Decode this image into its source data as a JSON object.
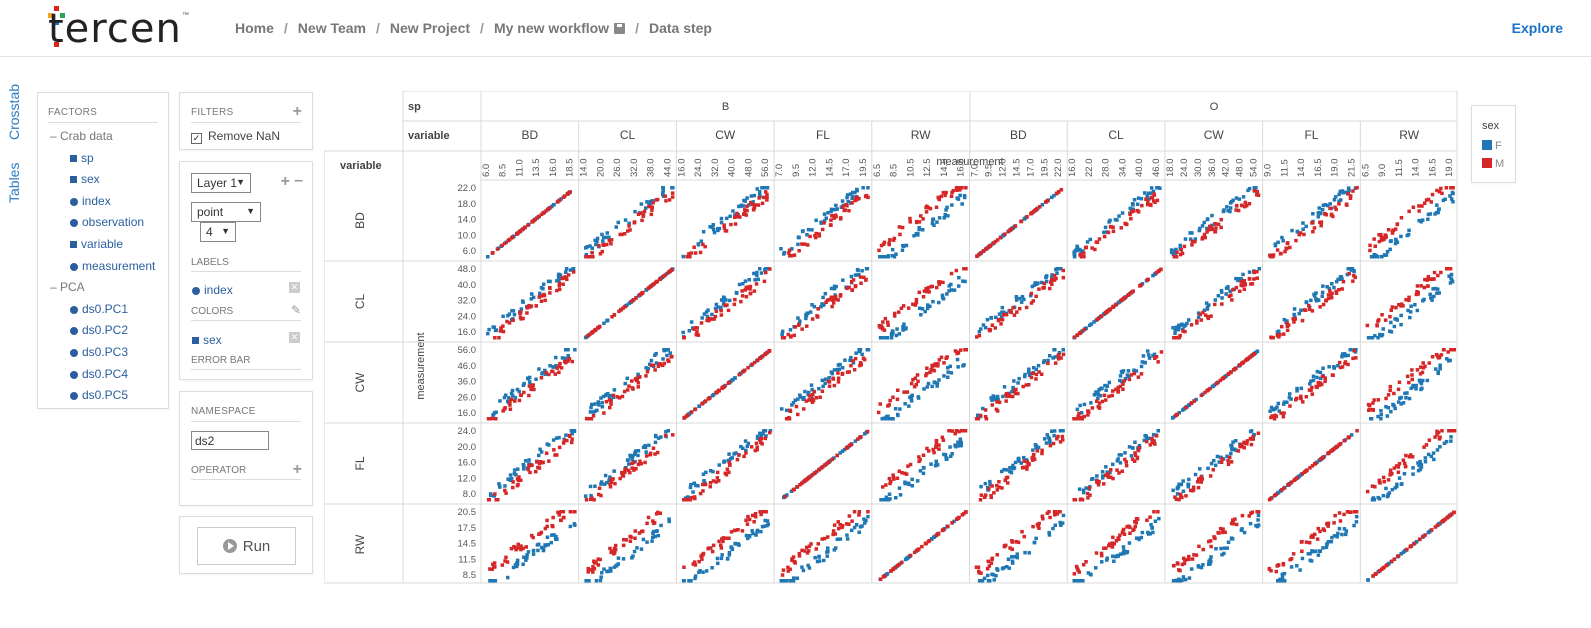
{
  "header": {
    "logo_text": "tercen",
    "breadcrumbs": [
      "Home",
      "New Team",
      "New Project",
      "My new workflow",
      "Data step"
    ],
    "explore_label": "Explore"
  },
  "side_tabs": {
    "crosstab": "Crosstab",
    "tables": "Tables"
  },
  "factors": {
    "title": "FACTORS",
    "groups": [
      {
        "label": "Crab data",
        "items": [
          {
            "label": "sp",
            "kind": "box"
          },
          {
            "label": "sex",
            "kind": "box"
          },
          {
            "label": "index",
            "kind": "dot"
          },
          {
            "label": "observation",
            "kind": "dot"
          },
          {
            "label": "variable",
            "kind": "box"
          },
          {
            "label": "measurement",
            "kind": "dot"
          }
        ]
      },
      {
        "label": "PCA",
        "items": [
          {
            "label": "ds0.PC1",
            "kind": "dot"
          },
          {
            "label": "ds0.PC2",
            "kind": "dot"
          },
          {
            "label": "ds0.PC3",
            "kind": "dot"
          },
          {
            "label": "ds0.PC4",
            "kind": "dot"
          },
          {
            "label": "ds0.PC5",
            "kind": "dot"
          }
        ]
      }
    ]
  },
  "filters": {
    "title": "FILTERS",
    "remove_nan": "Remove NaN"
  },
  "layer": {
    "layer_select": "Layer 1",
    "chart_type_select": "point",
    "size_select": "4",
    "labels_title": "LABELS",
    "labels_factor": "index",
    "colors_title": "COLORS",
    "colors_factor": "sex",
    "errorbar_title": "ERROR BAR"
  },
  "namespace": {
    "title": "NAMESPACE",
    "value": "ds2",
    "operator_title": "OPERATOR"
  },
  "run": {
    "label": "Run"
  },
  "legend": {
    "title": "sex",
    "items": [
      {
        "label": "F",
        "color": "#1f77b4"
      },
      {
        "label": "M",
        "color": "#d62728"
      }
    ]
  },
  "chart_data": {
    "type": "scatter",
    "description_free": true,
    "col_factor_labels": [
      "sp",
      "variable"
    ],
    "row_factor_label": "variable",
    "col_groups": [
      {
        "label": "B",
        "vars": [
          "BD",
          "CL",
          "CW",
          "FL",
          "RW"
        ]
      },
      {
        "label": "O",
        "vars": [
          "BD",
          "CL",
          "CW",
          "FL",
          "RW"
        ]
      }
    ],
    "rows": [
      "BD",
      "CL",
      "CW",
      "FL",
      "RW"
    ],
    "xlabel": "measurement",
    "ylabel": "measurement",
    "x_ticks": [
      [
        "6.0",
        "8.5",
        "11.0",
        "13.5",
        "16.0",
        "18.5"
      ],
      [
        "14.0",
        "20.0",
        "26.0",
        "32.0",
        "38.0",
        "44.0"
      ],
      [
        "16.0",
        "24.0",
        "32.0",
        "40.0",
        "48.0",
        "56.0"
      ],
      [
        "7.0",
        "9.5",
        "12.0",
        "14.5",
        "17.0",
        "19.5"
      ],
      [
        "6.5",
        "8.5",
        "10.5",
        "12.5",
        "14.5",
        "16.5"
      ],
      [
        "7.0",
        "9.5",
        "12.0",
        "14.5",
        "17.0",
        "19.5",
        "22.0"
      ],
      [
        "16.0",
        "22.0",
        "28.0",
        "34.0",
        "40.0",
        "46.0"
      ],
      [
        "18.0",
        "24.0",
        "30.0",
        "36.0",
        "42.0",
        "48.0",
        "54.0"
      ],
      [
        "9.0",
        "11.5",
        "14.0",
        "16.5",
        "19.0",
        "21.5"
      ],
      [
        "6.5",
        "9.0",
        "11.5",
        "14.0",
        "16.5",
        "19.0"
      ]
    ],
    "y_ticks": [
      [
        "22.0",
        "18.0",
        "14.0",
        "10.0",
        "6.0"
      ],
      [
        "48.0",
        "40.0",
        "32.0",
        "24.0",
        "16.0"
      ],
      [
        "56.0",
        "46.0",
        "36.0",
        "26.0",
        "16.0"
      ],
      [
        "24.0",
        "20.0",
        "16.0",
        "12.0",
        "8.0"
      ],
      [
        "20.5",
        "17.5",
        "14.5",
        "11.5",
        "8.5"
      ]
    ],
    "series": [
      {
        "name": "F",
        "color": "#1f77b4"
      },
      {
        "name": "M",
        "color": "#d62728"
      }
    ]
  }
}
